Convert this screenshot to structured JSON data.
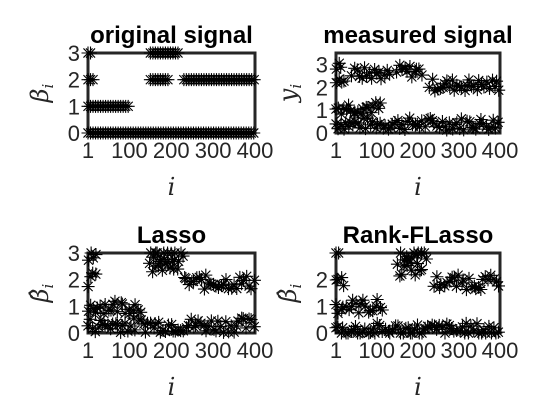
{
  "chart_data": [
    {
      "type": "scatter",
      "title": "original signal",
      "xlabel": "i",
      "ylabel": "β",
      "ylabel_sub": "i",
      "xlim": [
        1,
        400
      ],
      "ylim": [
        0,
        3
      ],
      "xticks": [
        "1",
        "100",
        "200",
        "300",
        "400"
      ],
      "yticks": [
        "0",
        "1",
        "2",
        "3"
      ],
      "marker": "asterisk",
      "segments": [
        {
          "x": [
            1,
            400
          ],
          "y": 0
        },
        {
          "x": [
            1,
            100
          ],
          "y": 1
        },
        {
          "x": [
            1,
            15
          ],
          "y": 2
        },
        {
          "x": [
            150,
            195
          ],
          "y": 2
        },
        {
          "x": [
            230,
            400
          ],
          "y": 2
        },
        {
          "x": [
            1,
            10
          ],
          "y": 3
        },
        {
          "x": [
            150,
            220
          ],
          "y": 3
        }
      ]
    },
    {
      "type": "scatter",
      "title": "measured signal",
      "xlabel": "i",
      "ylabel": "y",
      "ylabel_sub": "i",
      "xlim": [
        1,
        400
      ],
      "ylim": [
        0,
        3.5
      ],
      "xticks": [
        "1",
        "100",
        "200",
        "300",
        "400"
      ],
      "yticks": [
        "0",
        "1",
        "2",
        "3"
      ],
      "marker": "asterisk",
      "segments": [
        {
          "x": [
            1,
            400
          ],
          "y": 0.4
        },
        {
          "x": [
            1,
            110
          ],
          "y": 1.1
        },
        {
          "x": [
            1,
            20
          ],
          "y": 2.2
        },
        {
          "x": [
            150,
            210
          ],
          "y": 2.7
        },
        {
          "x": [
            230,
            400
          ],
          "y": 2.1
        },
        {
          "x": [
            1,
            15
          ],
          "y": 3.0
        },
        {
          "x": [
            40,
            130
          ],
          "y": 2.6
        }
      ]
    },
    {
      "type": "scatter",
      "title": "Lasso",
      "xlabel": "i",
      "ylabel": "β̂",
      "ylabel_sub": "i",
      "xlim": [
        1,
        400
      ],
      "ylim": [
        0,
        3
      ],
      "xticks": [
        "1",
        "100",
        "200",
        "300",
        "400"
      ],
      "yticks": [
        "0",
        "1",
        "2",
        "3"
      ],
      "marker": "asterisk",
      "segments": [
        {
          "x": [
            1,
            400
          ],
          "y": 0.3
        },
        {
          "x": [
            1,
            130
          ],
          "y": 1.0
        },
        {
          "x": [
            1,
            20
          ],
          "y": 2.0
        },
        {
          "x": [
            150,
            220
          ],
          "y": 2.5
        },
        {
          "x": [
            230,
            400
          ],
          "y": 1.9
        },
        {
          "x": [
            1,
            20
          ],
          "y": 2.9
        },
        {
          "x": [
            150,
            230
          ],
          "y": 2.9
        }
      ]
    },
    {
      "type": "scatter",
      "title": "Rank-FLasso",
      "xlabel": "i",
      "ylabel": "β̂",
      "ylabel_sub": "i",
      "xlim": [
        1,
        400
      ],
      "ylim": [
        0,
        3
      ],
      "xticks": [
        "1",
        "100",
        "200",
        "300",
        "400"
      ],
      "yticks": [
        "0",
        "1",
        "2"
      ],
      "marker": "asterisk",
      "segments": [
        {
          "x": [
            1,
            400
          ],
          "y": 0.1
        },
        {
          "x": [
            1,
            120
          ],
          "y": 1.0
        },
        {
          "x": [
            1,
            20
          ],
          "y": 2.0
        },
        {
          "x": [
            150,
            210
          ],
          "y": 2.4
        },
        {
          "x": [
            240,
            400
          ],
          "y": 1.9
        },
        {
          "x": [
            1,
            10
          ],
          "y": 3.0
        },
        {
          "x": [
            160,
            220
          ],
          "y": 3.0
        }
      ]
    }
  ]
}
